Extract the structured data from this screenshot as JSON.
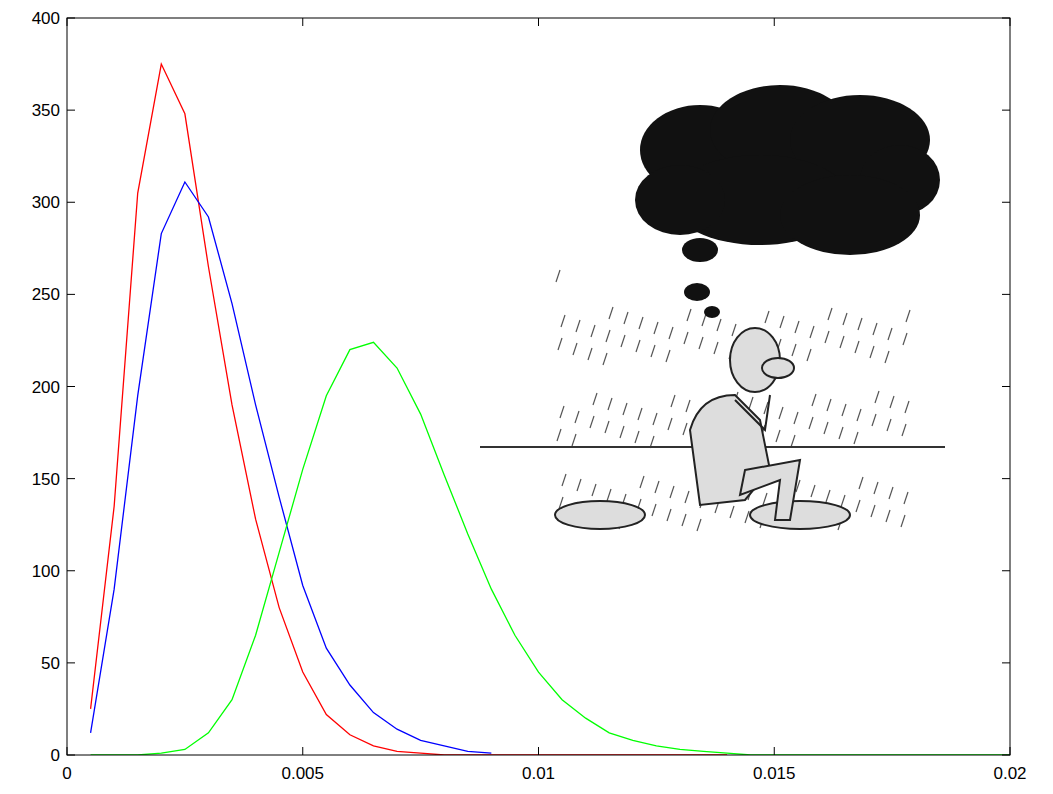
{
  "chart_data": {
    "type": "line",
    "x": [
      0.0005,
      0.001,
      0.0015,
      0.002,
      0.0025,
      0.003,
      0.0035,
      0.004,
      0.0045,
      0.005,
      0.0055,
      0.006,
      0.0065,
      0.007,
      0.0075,
      0.008,
      0.0085,
      0.009,
      0.0095,
      0.01,
      0.0105,
      0.011,
      0.0115,
      0.012,
      0.0125,
      0.013,
      0.0135,
      0.014,
      0.0145,
      0.015,
      0.0155,
      0.016,
      0.0165,
      0.017,
      0.0175,
      0.018,
      0.0185,
      0.019,
      0.0195,
      0.02
    ],
    "series": [
      {
        "color": "#ff0000",
        "values": [
          25,
          135,
          305,
          375,
          348,
          265,
          190,
          128,
          80,
          45,
          22,
          11,
          5,
          2,
          1,
          0,
          0,
          0,
          0,
          0,
          0,
          0,
          0,
          0,
          0,
          0,
          0,
          0,
          null,
          null,
          null,
          null,
          null,
          null,
          null,
          null,
          null,
          null,
          null,
          null
        ]
      },
      {
        "color": "#0000ff",
        "values": [
          12,
          90,
          195,
          283,
          311,
          292,
          245,
          190,
          140,
          92,
          58,
          38,
          23,
          14,
          8,
          5,
          2,
          1,
          null,
          null,
          null,
          null,
          null,
          null,
          null,
          null,
          null,
          null,
          null,
          null,
          null,
          null,
          null,
          null,
          null,
          null,
          null,
          null,
          null,
          null
        ]
      },
      {
        "color": "#00ff00",
        "values": [
          0,
          0,
          0,
          1,
          3,
          12,
          30,
          65,
          110,
          155,
          195,
          220,
          224,
          210,
          185,
          152,
          120,
          90,
          65,
          45,
          30,
          20,
          12,
          8,
          5,
          3,
          2,
          1,
          0,
          0,
          0,
          0,
          0,
          0,
          0,
          0,
          0,
          0,
          0,
          0
        ]
      }
    ],
    "xlim": [
      0,
      0.02
    ],
    "xticks": [
      0,
      0.005,
      0.01,
      0.015,
      0.02
    ],
    "ylim": [
      0,
      400
    ],
    "yticks": [
      0,
      50,
      100,
      150,
      200,
      250,
      300,
      350,
      400
    ],
    "grid": false
  }
}
